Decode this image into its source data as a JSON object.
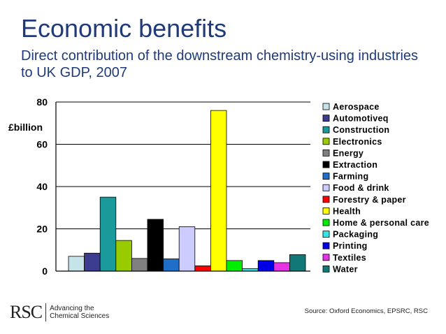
{
  "header": {
    "title": "Economic benefits",
    "subtitle": "Direct contribution of the downstream chemistry-using industries to UK GDP, 2007"
  },
  "footer": {
    "logo_mark": "RSC",
    "logo_tagline": "Advancing the Chemical Sciences",
    "source": "Source: Oxford Economics, EPSRC, RSC"
  },
  "chart_data": {
    "type": "bar",
    "ylabel": "£billion",
    "ylim": [
      0,
      80
    ],
    "yticks": [
      0,
      20,
      40,
      60,
      80
    ],
    "grid": true,
    "legend_position": "right",
    "categories": [
      "Aerospace",
      "Automotiveq",
      "Construction",
      "Electronics",
      "Energy",
      "Extraction",
      "Farming",
      "Food & drink",
      "Forestry & paper",
      "Health",
      "Home & personal care",
      "Packaging",
      "Printing",
      "Textiles",
      "Water"
    ],
    "values": [
      7,
      8.5,
      35,
      14.5,
      6,
      24.5,
      5.8,
      21,
      2.5,
      76,
      5,
      1.2,
      5,
      4,
      7.8
    ],
    "colors": [
      "#c5e3e8",
      "#3b3b8f",
      "#1a9a9a",
      "#99cc00",
      "#808080",
      "#000000",
      "#1f6fc9",
      "#ccccff",
      "#ff0000",
      "#ffff00",
      "#00ee00",
      "#33e6e6",
      "#0000e6",
      "#e633e6",
      "#117777"
    ]
  }
}
